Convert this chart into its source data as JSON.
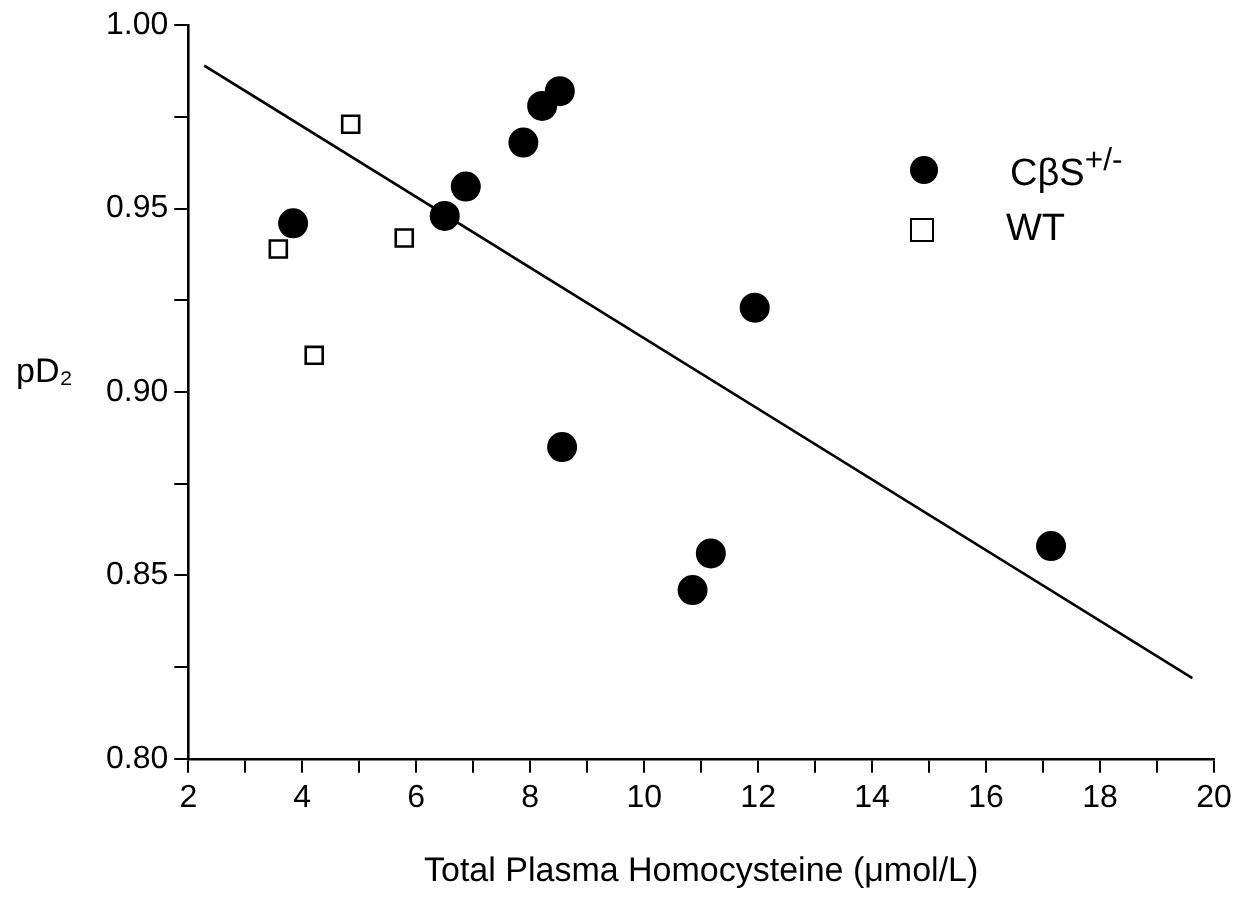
{
  "chart_data": {
    "type": "scatter",
    "xlabel": "Total Plasma Homocysteine (μmol/L)",
    "ylabel": "pD₂",
    "xlim": [
      2,
      20
    ],
    "ylim": [
      0.8,
      1.0
    ],
    "xticks": [
      2,
      {
        "value": 3,
        "label": null
      },
      4,
      {
        "value": 5,
        "label": null
      },
      6,
      {
        "value": 7,
        "label": null
      },
      8,
      {
        "value": 9,
        "label": null
      },
      10,
      {
        "value": 11,
        "label": null
      },
      12,
      {
        "value": 13,
        "label": null
      },
      14,
      {
        "value": 15,
        "label": null
      },
      16,
      {
        "value": 17,
        "label": null
      },
      18,
      {
        "value": 19,
        "label": null
      },
      20
    ],
    "yticks": [
      {
        "value": 0.8,
        "label": "0.80"
      },
      {
        "value": 0.825,
        "label": null
      },
      {
        "value": 0.85,
        "label": "0.85"
      },
      {
        "value": 0.875,
        "label": null
      },
      {
        "value": 0.9,
        "label": "0.90"
      },
      {
        "value": 0.925,
        "label": null
      },
      {
        "value": 0.95,
        "label": "0.95"
      },
      {
        "value": 0.975,
        "label": null
      },
      {
        "value": 1.0,
        "label": "1.00"
      }
    ],
    "grid": false,
    "legend": "top right",
    "series": [
      {
        "name": "CβS$^{+/-}$",
        "color": "#000000",
        "marker": "circle",
        "x": [
          3.84,
          6.5,
          6.87,
          7.88,
          8.21,
          8.52,
          11.94,
          8.56,
          11.17,
          10.85,
          17.14
        ],
        "values": [
          0.946,
          0.948,
          0.956,
          0.968,
          0.978,
          0.982,
          0.923,
          0.885,
          0.856,
          0.846,
          0.858
        ]
      },
      {
        "name": "WT",
        "color": "#000000",
        "marker": "square",
        "x": [
          3.58,
          4.85,
          5.79,
          4.21
        ],
        "values": [
          0.939,
          0.973,
          0.942,
          0.91
        ]
      },
      {
        "type": "line",
        "color": "#000000",
        "marker": "none",
        "line_style": "solid",
        "x": [
          2.28,
          19.62
        ],
        "values": [
          0.989,
          0.822
        ]
      }
    ]
  }
}
